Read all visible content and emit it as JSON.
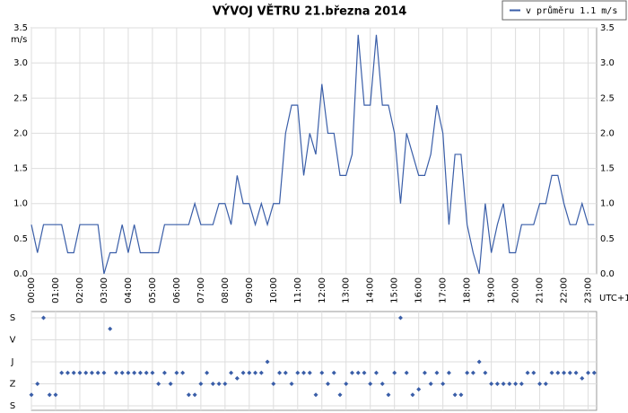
{
  "chart_data": [
    {
      "type": "line",
      "title": "VÝVOJ VĚTRU  21.března 2014",
      "y_unit": "m/s",
      "x_unit": "UTC+1",
      "legend": "v průměru 1.1 m/s",
      "legend_position": "top-right",
      "color": "#3a5ea8",
      "grid": true,
      "x": [
        "00:00",
        "00:15",
        "00:30",
        "00:45",
        "01:00",
        "01:15",
        "01:30",
        "01:45",
        "02:00",
        "02:15",
        "02:30",
        "02:45",
        "03:00",
        "03:15",
        "03:30",
        "03:45",
        "04:00",
        "04:15",
        "04:30",
        "04:45",
        "05:00",
        "05:15",
        "05:30",
        "05:45",
        "06:00",
        "06:15",
        "06:30",
        "06:45",
        "07:00",
        "07:15",
        "07:30",
        "07:45",
        "08:00",
        "08:15",
        "08:30",
        "08:45",
        "09:00",
        "09:15",
        "09:30",
        "09:45",
        "10:00",
        "10:15",
        "10:30",
        "10:45",
        "11:00",
        "11:15",
        "11:30",
        "11:45",
        "12:00",
        "12:15",
        "12:30",
        "12:45",
        "13:00",
        "13:15",
        "13:30",
        "13:45",
        "14:00",
        "14:15",
        "14:30",
        "14:45",
        "15:00",
        "15:15",
        "15:30",
        "15:45",
        "16:00",
        "16:15",
        "16:30",
        "16:45",
        "17:00",
        "17:15",
        "17:30",
        "17:45",
        "18:00",
        "18:15",
        "18:30",
        "18:45",
        "19:00",
        "19:15",
        "19:30",
        "19:45",
        "20:00",
        "20:15",
        "20:30",
        "20:45",
        "21:00",
        "21:15",
        "21:30",
        "21:45",
        "22:00",
        "22:15",
        "22:30",
        "22:45",
        "23:00",
        "23:15"
      ],
      "values": [
        0.7,
        0.3,
        0.7,
        0.7,
        0.7,
        0.7,
        0.3,
        0.3,
        0.7,
        0.7,
        0.7,
        0.7,
        0.0,
        0.3,
        0.3,
        0.7,
        0.3,
        0.7,
        0.3,
        0.3,
        0.3,
        0.3,
        0.7,
        0.7,
        0.7,
        0.7,
        0.7,
        1.0,
        0.7,
        0.7,
        0.7,
        1.0,
        1.0,
        0.7,
        1.4,
        1.0,
        1.0,
        0.7,
        1.0,
        0.7,
        1.0,
        1.0,
        2.0,
        2.4,
        2.4,
        1.4,
        2.0,
        1.7,
        2.7,
        2.0,
        2.0,
        1.4,
        1.4,
        1.7,
        3.4,
        2.4,
        2.4,
        3.4,
        2.4,
        2.4,
        2.0,
        1.0,
        2.0,
        1.7,
        1.4,
        1.4,
        1.7,
        2.4,
        2.0,
        0.7,
        1.7,
        1.7,
        0.7,
        0.3,
        0.0,
        1.0,
        0.3,
        0.7,
        1.0,
        0.3,
        0.3,
        0.7,
        0.7,
        0.7,
        1.0,
        1.0,
        1.4,
        1.4,
        1.0,
        0.7,
        0.7,
        1.0,
        0.7,
        0.7
      ],
      "xticks": [
        "00:00",
        "01:00",
        "02:00",
        "03:00",
        "04:00",
        "05:00",
        "06:00",
        "07:00",
        "08:00",
        "09:00",
        "10:00",
        "11:00",
        "12:00",
        "13:00",
        "14:00",
        "15:00",
        "16:00",
        "17:00",
        "18:00",
        "19:00",
        "20:00",
        "21:00",
        "22:00",
        "23:00"
      ],
      "ylim": [
        0,
        3.5
      ],
      "yticks": [
        {
          "value": 0,
          "label": "0.0"
        },
        {
          "value": 0.5,
          "label": "0.5"
        },
        {
          "value": 1,
          "label": "1.0"
        },
        {
          "value": 1.5,
          "label": "1.5"
        },
        {
          "value": 2,
          "label": "2.0"
        },
        {
          "value": 2.5,
          "label": "2.5"
        },
        {
          "value": 3,
          "label": "3.0"
        },
        {
          "value": 3.5,
          "label": "3.5"
        }
      ]
    },
    {
      "type": "scatter",
      "color": "#3a5ea8",
      "grid": true,
      "values": [
        0.5,
        1,
        4,
        0.5,
        0.5,
        1.5,
        1.5,
        1.5,
        1.5,
        1.5,
        1.5,
        1.5,
        1.5,
        3.5,
        1.5,
        1.5,
        1.5,
        1.5,
        1.5,
        1.5,
        1.5,
        1,
        1.5,
        1,
        1.5,
        1.5,
        0.5,
        0.5,
        1,
        1.5,
        1,
        1,
        1,
        1.5,
        1.25,
        1.5,
        1.5,
        1.5,
        1.5,
        2,
        1,
        1.5,
        1.5,
        1,
        1.5,
        1.5,
        1.5,
        0.5,
        1.5,
        1,
        1.5,
        0.5,
        1,
        1.5,
        1.5,
        1.5,
        1,
        1.5,
        1,
        0.5,
        1.5,
        4,
        1.5,
        0.5,
        0.75,
        1.5,
        1,
        1.5,
        1,
        1.5,
        0.5,
        0.5,
        1.5,
        1.5,
        2,
        1.5,
        1,
        1,
        1,
        1,
        1,
        1,
        1.5,
        1.5,
        1,
        1,
        1.5,
        1.5,
        1.5,
        1.5,
        1.5,
        1.25,
        1.5,
        1.5
      ],
      "ylim": [
        0,
        4
      ],
      "yticks": [
        {
          "value": 0,
          "label": "S"
        },
        {
          "value": 1,
          "label": "Z"
        },
        {
          "value": 2,
          "label": "J"
        },
        {
          "value": 3,
          "label": "V"
        },
        {
          "value": 4,
          "label": "S"
        }
      ]
    }
  ]
}
